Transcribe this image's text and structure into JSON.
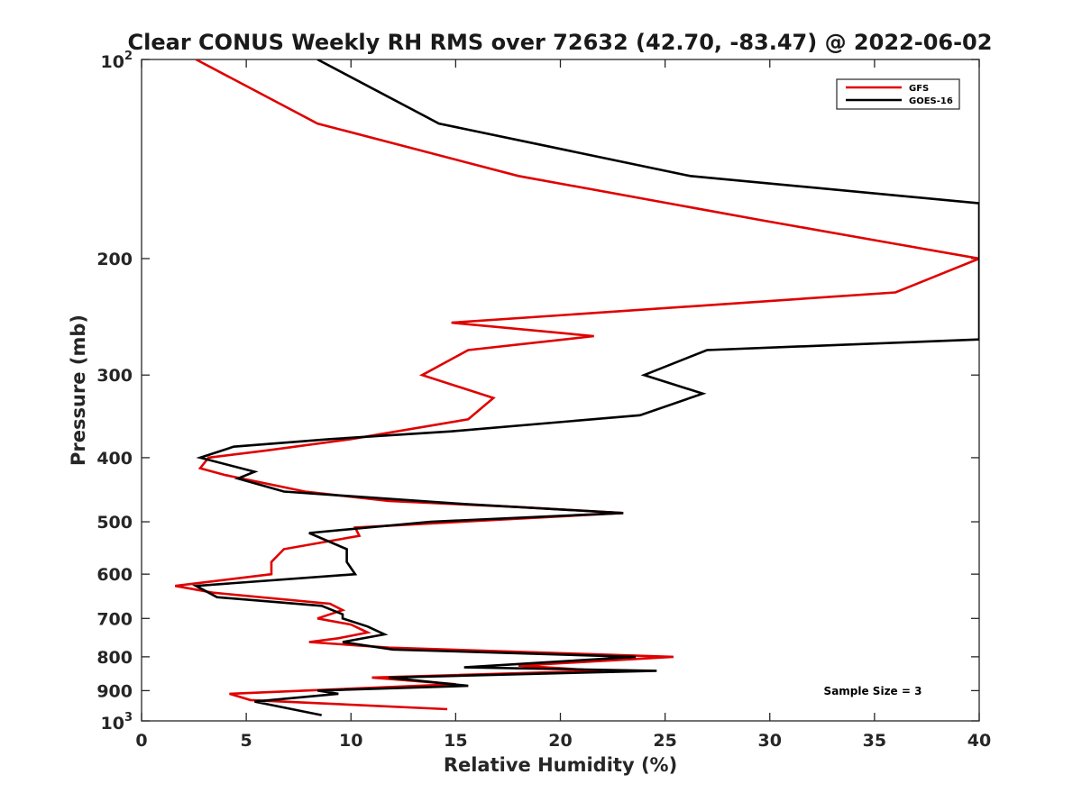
{
  "chart_data": {
    "type": "line",
    "title": "Clear CONUS Weekly RH RMS over 72632 (42.70, -83.47) @ 2022-06-02",
    "xlabel": "Relative Humidity (%)",
    "ylabel": "Pressure (mb)",
    "xlim": [
      0,
      40
    ],
    "ylim": [
      100,
      1000
    ],
    "y_scale": "log",
    "y_reversed": true,
    "grid": false,
    "x_ticks": [
      "0",
      "5",
      "10",
      "15",
      "20",
      "25",
      "30",
      "35",
      "40"
    ],
    "y_ticks": [
      {
        "value": 100,
        "base": "10",
        "exp": "2"
      },
      {
        "value": 200,
        "label": "200"
      },
      {
        "value": 300,
        "label": "300"
      },
      {
        "value": 400,
        "label": "400"
      },
      {
        "value": 500,
        "label": "500"
      },
      {
        "value": 600,
        "label": "600"
      },
      {
        "value": 700,
        "label": "700"
      },
      {
        "value": 800,
        "label": "800"
      },
      {
        "value": 900,
        "label": "900"
      },
      {
        "value": 1000,
        "base": "10",
        "exp": "3"
      }
    ],
    "legend_position": "top-right",
    "annotation": "Sample Size = 3",
    "series": [
      {
        "name": "GFS",
        "color": "#e00000",
        "points": [
          [
            2.6,
            100
          ],
          [
            8.4,
            125
          ],
          [
            18.0,
            150
          ],
          [
            29.6,
            175
          ],
          [
            36.0,
            190
          ],
          [
            40.0,
            200
          ],
          [
            36.0,
            225
          ],
          [
            14.8,
            250
          ],
          [
            21.6,
            262
          ],
          [
            15.6,
            275
          ],
          [
            13.4,
            300
          ],
          [
            16.8,
            325
          ],
          [
            15.6,
            350
          ],
          [
            10.0,
            375
          ],
          [
            6.0,
            390
          ],
          [
            3.2,
            400
          ],
          [
            2.8,
            415
          ],
          [
            4.0,
            425
          ],
          [
            7.8,
            450
          ],
          [
            11.8,
            465
          ],
          [
            18.0,
            475
          ],
          [
            23.0,
            485
          ],
          [
            10.2,
            510
          ],
          [
            10.4,
            525
          ],
          [
            6.8,
            550
          ],
          [
            6.2,
            575
          ],
          [
            6.2,
            600
          ],
          [
            1.6,
            625
          ],
          [
            3.4,
            640
          ],
          [
            9.0,
            665
          ],
          [
            9.6,
            680
          ],
          [
            8.4,
            700
          ],
          [
            10.0,
            715
          ],
          [
            10.8,
            735
          ],
          [
            9.4,
            750
          ],
          [
            8.0,
            760
          ],
          [
            11.8,
            775
          ],
          [
            25.4,
            800
          ],
          [
            18.0,
            825
          ],
          [
            22.0,
            840
          ],
          [
            11.0,
            860
          ],
          [
            15.0,
            880
          ],
          [
            4.2,
            910
          ],
          [
            5.2,
            930
          ],
          [
            14.6,
            960
          ]
        ]
      },
      {
        "name": "GOES-16",
        "color": "#000000",
        "points": [
          [
            8.4,
            100
          ],
          [
            14.2,
            125
          ],
          [
            26.2,
            150
          ],
          [
            40.0,
            165
          ],
          [
            40.0,
            265
          ],
          [
            27.0,
            275
          ],
          [
            24.0,
            300
          ],
          [
            26.8,
            320
          ],
          [
            23.8,
            345
          ],
          [
            14.8,
            365
          ],
          [
            9.0,
            375
          ],
          [
            4.4,
            385
          ],
          [
            2.8,
            400
          ],
          [
            5.4,
            420
          ],
          [
            4.6,
            430
          ],
          [
            6.8,
            450
          ],
          [
            15.4,
            470
          ],
          [
            23.0,
            485
          ],
          [
            13.8,
            500
          ],
          [
            8.0,
            520
          ],
          [
            9.8,
            550
          ],
          [
            9.8,
            575
          ],
          [
            10.2,
            600
          ],
          [
            2.6,
            625
          ],
          [
            3.6,
            650
          ],
          [
            8.6,
            670
          ],
          [
            9.6,
            690
          ],
          [
            9.6,
            700
          ],
          [
            10.8,
            720
          ],
          [
            11.6,
            740
          ],
          [
            9.6,
            760
          ],
          [
            12.0,
            780
          ],
          [
            23.6,
            800
          ],
          [
            15.4,
            830
          ],
          [
            24.6,
            840
          ],
          [
            11.8,
            860
          ],
          [
            15.6,
            885
          ],
          [
            8.4,
            900
          ],
          [
            9.4,
            910
          ],
          [
            5.4,
            935
          ],
          [
            8.6,
            980
          ]
        ]
      }
    ]
  }
}
